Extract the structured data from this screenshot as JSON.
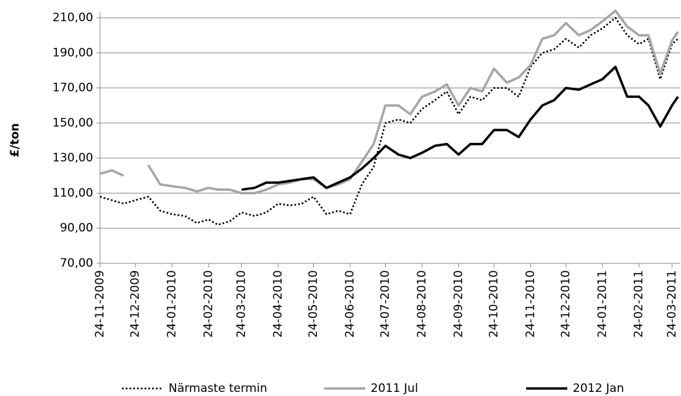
{
  "chart_data": {
    "type": "line",
    "ylabel": "£/ton",
    "x": [
      "24-11-2009",
      "04-12-2009",
      "14-12-2009",
      "24-12-2009",
      "04-01-2010",
      "14-01-2010",
      "24-01-2010",
      "04-02-2010",
      "14-02-2010",
      "24-02-2010",
      "04-03-2010",
      "14-03-2010",
      "24-03-2010",
      "04-04-2010",
      "14-04-2010",
      "24-04-2010",
      "04-05-2010",
      "14-05-2010",
      "24-05-2010",
      "04-06-2010",
      "14-06-2010",
      "24-06-2010",
      "04-07-2010",
      "14-07-2010",
      "24-07-2010",
      "04-08-2010",
      "14-08-2010",
      "24-08-2010",
      "04-09-2010",
      "14-09-2010",
      "24-09-2010",
      "04-10-2010",
      "14-10-2010",
      "24-10-2010",
      "04-11-2010",
      "14-11-2010",
      "24-11-2010",
      "04-12-2010",
      "14-12-2010",
      "24-12-2010",
      "04-01-2011",
      "14-01-2011",
      "24-01-2011",
      "04-02-2011",
      "14-02-2011",
      "24-02-2011",
      "04-03-2011",
      "14-03-2011",
      "24-03-2011",
      "29-03-2011"
    ],
    "series": [
      {
        "name": "Närmaste termin",
        "color": "#000000",
        "dash": "dotted",
        "values": [
          108,
          106,
          104,
          106,
          108,
          100,
          98,
          97,
          93,
          95,
          92,
          94,
          99,
          97,
          99,
          104,
          103,
          104,
          108,
          98,
          100,
          98,
          115,
          125,
          150,
          152,
          150,
          158,
          163,
          168,
          155,
          165,
          163,
          170,
          170,
          165,
          182,
          190,
          192,
          198,
          193,
          200,
          204,
          210,
          200,
          195,
          198,
          175,
          195,
          198
        ]
      },
      {
        "name": "2011 Jul",
        "color": "#a6a6a6",
        "dash": "solid",
        "values": [
          121,
          123,
          120,
          null,
          126,
          115,
          114,
          113,
          111,
          113,
          112,
          112,
          110,
          110,
          112,
          115,
          116,
          118,
          118,
          113,
          115,
          118,
          128,
          138,
          160,
          160,
          155,
          165,
          168,
          172,
          160,
          170,
          168,
          181,
          173,
          176,
          183,
          198,
          200,
          207,
          200,
          203,
          208,
          214,
          205,
          200,
          200,
          178,
          197,
          202
        ]
      },
      {
        "name": "2012 Jan",
        "color": "#000000",
        "dash": "solid",
        "values": [
          null,
          null,
          null,
          null,
          null,
          null,
          null,
          null,
          null,
          null,
          null,
          null,
          112,
          113,
          116,
          116,
          117,
          118,
          119,
          113,
          116,
          119,
          124,
          130,
          137,
          132,
          130,
          133,
          137,
          138,
          132,
          138,
          138,
          146,
          146,
          142,
          152,
          160,
          163,
          170,
          169,
          172,
          175,
          182,
          165,
          165,
          160,
          148,
          160,
          165
        ]
      }
    ],
    "xlim": [
      "24-11-2009",
      "31-03-2011"
    ],
    "xticks": [
      "24-11-2009",
      "24-12-2009",
      "24-01-2010",
      "24-02-2010",
      "24-03-2010",
      "24-04-2010",
      "24-05-2010",
      "24-06-2010",
      "24-07-2010",
      "24-08-2010",
      "24-09-2010",
      "24-10-2010",
      "24-11-2010",
      "24-12-2010",
      "24-01-2011",
      "24-02-2011",
      "24-03-2011"
    ],
    "ylim": [
      70,
      210
    ],
    "yticks": [
      {
        "value": 70,
        "label": "70,00"
      },
      {
        "value": 90,
        "label": "90,00"
      },
      {
        "value": 110,
        "label": "110,00"
      },
      {
        "value": 130,
        "label": "130,00"
      },
      {
        "value": 150,
        "label": "150,00"
      },
      {
        "value": 170,
        "label": "170,00"
      },
      {
        "value": 190,
        "label": "190,00"
      },
      {
        "value": 210,
        "label": "210,00"
      }
    ],
    "grid": true,
    "legend": "bottom"
  }
}
